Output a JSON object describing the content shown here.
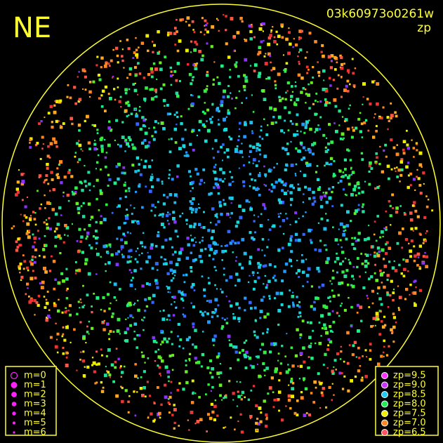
{
  "header": {
    "direction": "NE",
    "frame_id": "03k60973o0261w",
    "color_key": "zp"
  },
  "magnitude_legend": [
    "m=0",
    "m=1",
    "m=2",
    "m=3",
    "m=4",
    "m=5",
    "m=6"
  ],
  "zp_legend": [
    {
      "label": "zp=9.5",
      "color": "#ff33ff"
    },
    {
      "label": "zp=9.0",
      "color": "#cc33ff"
    },
    {
      "label": "zp=8.5",
      "color": "#22ccee"
    },
    {
      "label": "zp=8.0",
      "color": "#22ee55"
    },
    {
      "label": "zp=7.5",
      "color": "#eeee00"
    },
    {
      "label": "zp=7.0",
      "color": "#ff8822"
    },
    {
      "label": "zp=6.5",
      "color": "#ff5566"
    }
  ]
}
